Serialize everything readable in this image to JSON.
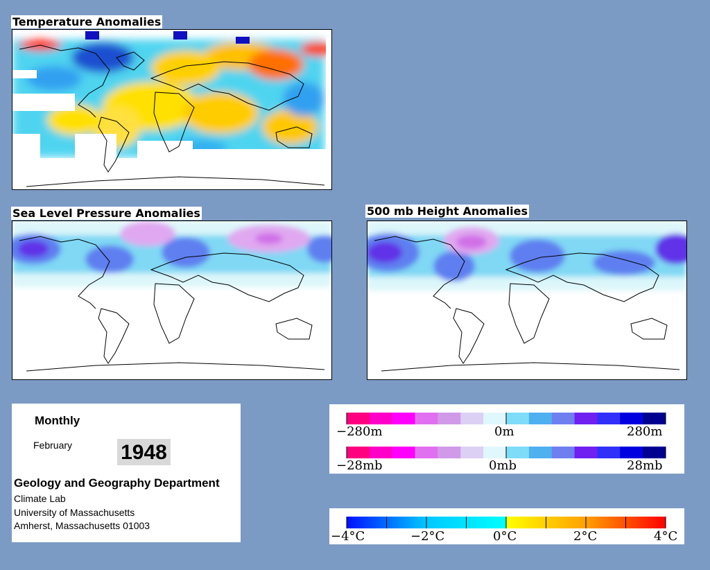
{
  "panels": {
    "temperature_title": "Temperature Anomalies",
    "slp_title": "Sea Level Pressure Anomalies",
    "height_title": "500 mb Height Anomalies"
  },
  "info": {
    "period": "Monthly",
    "month": "February",
    "year": "1948",
    "department": "Geology and Geography Department",
    "lab": "Climate Lab",
    "university": "University of Massachusetts",
    "address": "Amherst, Massachusetts 01003"
  },
  "legend_height": {
    "min_label": "−280m",
    "mid_label": "0m",
    "max_label": "280m",
    "colors": [
      "#ff0080",
      "#ff00c8",
      "#ff00ff",
      "#e070f0",
      "#d09ae8",
      "#dcd0f4",
      "#e0f8fc",
      "#7fdcf8",
      "#4fb0f0",
      "#6f7ff0",
      "#7020f0",
      "#3030f8",
      "#0000e0",
      "#000090"
    ]
  },
  "legend_pressure": {
    "min_label": "−28mb",
    "mid_label": "0mb",
    "max_label": "28mb",
    "colors": [
      "#ff0080",
      "#ff00c8",
      "#ff00ff",
      "#e070f0",
      "#d09ae8",
      "#dcd0f4",
      "#e0f8fc",
      "#7fdcf8",
      "#4fb0f0",
      "#6f7ff0",
      "#7020f0",
      "#3030f8",
      "#0000e0",
      "#000090"
    ]
  },
  "legend_temperature": {
    "labels": [
      "−4°C",
      "−2°C",
      "0°C",
      "2°C",
      "4°C"
    ],
    "gradient": [
      "#0010ff",
      "#00c8ff",
      "#00ffff",
      "#ffff00",
      "#ffa000",
      "#ff0000"
    ]
  }
}
